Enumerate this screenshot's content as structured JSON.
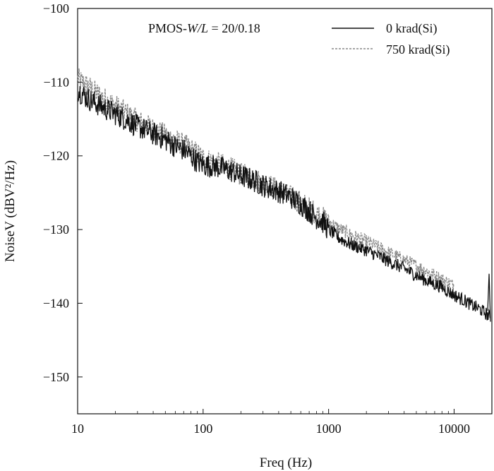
{
  "chart_data": {
    "type": "line",
    "xlabel": "Freq (Hz)",
    "ylabel": "NoiseV (dBV²/Hz)",
    "x_scale": "log",
    "xlim": [
      10,
      20000
    ],
    "ylim": [
      -155,
      -100
    ],
    "x_ticks": [
      10,
      100,
      1000,
      10000
    ],
    "x_tick_labels": [
      "10",
      "100",
      "1000",
      "10000"
    ],
    "y_ticks": [
      -150,
      -140,
      -130,
      -120,
      -110,
      -100
    ],
    "y_tick_labels": [
      "−150",
      "−140",
      "−130",
      "−120",
      "−110",
      "−100"
    ],
    "grid": false,
    "legend_position": "top-right",
    "annotation": {
      "prefix": "PMOS-",
      "italic": "W/L",
      "suffix": " = 20/0.18"
    },
    "series": [
      {
        "name": "0 krad(Si)",
        "color": "#111111",
        "dash": "solid",
        "points": [
          [
            10,
            -111
          ],
          [
            12,
            -112.2
          ],
          [
            15,
            -113.2
          ],
          [
            20,
            -114.3
          ],
          [
            25,
            -115.2
          ],
          [
            30,
            -116
          ],
          [
            40,
            -117
          ],
          [
            50,
            -117.8
          ],
          [
            60,
            -118.7
          ],
          [
            70,
            -119.2
          ],
          [
            80,
            -120
          ],
          [
            90,
            -120.8
          ],
          [
            100,
            -121.2
          ],
          [
            130,
            -121.5
          ],
          [
            170,
            -122.1
          ],
          [
            200,
            -122.7
          ],
          [
            250,
            -123.3
          ],
          [
            300,
            -124
          ],
          [
            400,
            -124.8
          ],
          [
            500,
            -125.6
          ],
          [
            600,
            -126.5
          ],
          [
            700,
            -127.5
          ],
          [
            800,
            -128.4
          ],
          [
            900,
            -129
          ],
          [
            1000,
            -130
          ],
          [
            1200,
            -131.1
          ],
          [
            1500,
            -132
          ],
          [
            2000,
            -132.8
          ],
          [
            2500,
            -133.6
          ],
          [
            3000,
            -134.3
          ],
          [
            4000,
            -135.3
          ],
          [
            5000,
            -136.2
          ],
          [
            6000,
            -136.9
          ],
          [
            7000,
            -137.4
          ],
          [
            8000,
            -137.8
          ],
          [
            9000,
            -138.4
          ],
          [
            10000,
            -138.9
          ],
          [
            12000,
            -139.6
          ],
          [
            14000,
            -140.3
          ],
          [
            16000,
            -140.8
          ],
          [
            18000,
            -141.4
          ],
          [
            19500,
            -142
          ]
        ]
      },
      {
        "name": "750 krad(Si)",
        "color": "#888888",
        "dash": "dashed",
        "points": [
          [
            10,
            -109.6
          ],
          [
            12,
            -110.5
          ],
          [
            15,
            -111.8
          ],
          [
            20,
            -113.2
          ],
          [
            25,
            -114.3
          ],
          [
            30,
            -115.2
          ],
          [
            40,
            -116.3
          ],
          [
            50,
            -117.2
          ],
          [
            60,
            -117.9
          ],
          [
            70,
            -118.5
          ],
          [
            80,
            -119.1
          ],
          [
            90,
            -119.7
          ],
          [
            100,
            -120.3
          ],
          [
            130,
            -121
          ],
          [
            170,
            -121.8
          ],
          [
            200,
            -122.5
          ],
          [
            250,
            -123
          ],
          [
            300,
            -123.7
          ],
          [
            400,
            -124.6
          ],
          [
            500,
            -125.6
          ],
          [
            600,
            -126.3
          ],
          [
            700,
            -127.1
          ],
          [
            800,
            -127.8
          ],
          [
            900,
            -128.4
          ],
          [
            1000,
            -128.9
          ],
          [
            1200,
            -129.8
          ],
          [
            1500,
            -130.7
          ],
          [
            2000,
            -131.6
          ],
          [
            2500,
            -132.4
          ],
          [
            3000,
            -133.1
          ],
          [
            4000,
            -134.1
          ],
          [
            5000,
            -134.9
          ],
          [
            6000,
            -135.6
          ],
          [
            7000,
            -136.2
          ],
          [
            8000,
            -136.7
          ],
          [
            9000,
            -137.2
          ],
          [
            10000,
            -137.6
          ]
        ]
      }
    ]
  }
}
